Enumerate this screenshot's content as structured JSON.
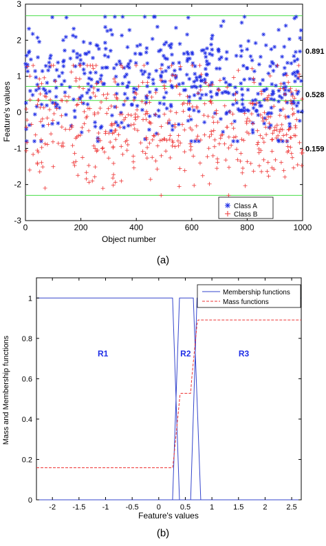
{
  "chart_data": [
    {
      "type": "scatter",
      "panel_label": "(a)",
      "xlabel": "Object number",
      "ylabel": "Feature's values",
      "xlim": [
        0,
        1000
      ],
      "ylim": [
        -3,
        3
      ],
      "xticks": [
        0,
        200,
        400,
        600,
        800,
        1000
      ],
      "xtick_labels": [
        "0",
        "200",
        "400",
        "600",
        "800",
        "1000"
      ],
      "yticks": [
        -3,
        -2,
        -1,
        0,
        1,
        2,
        3
      ],
      "ytick_labels": [
        "-3",
        "-2",
        "-1",
        "0",
        "1",
        "2",
        "3"
      ],
      "legend_position": "bottom-right",
      "series": [
        {
          "name": "Class A",
          "marker": "*",
          "color": "#1f2ee6",
          "n_points": 500,
          "y_range": [
            -0.8,
            2.65
          ],
          "y_center": 0.9
        },
        {
          "name": "Class B",
          "marker": "+",
          "color": "#ee3333",
          "n_points": 500,
          "y_range": [
            -2.3,
            1.3
          ],
          "y_center": -0.3
        }
      ],
      "reference_lines": {
        "color": "#44dd44",
        "y": [
          2.68,
          0.72,
          0.33,
          -2.3
        ]
      },
      "annotations": [
        {
          "text": "0.891",
          "y": 1.7
        },
        {
          "text": "0.528",
          "y": 0.5
        },
        {
          "text": "0.159",
          "y": -1.0
        }
      ]
    },
    {
      "type": "line",
      "panel_label": "(b)",
      "xlabel": "Feature's values",
      "ylabel": "Mass and Membership functions",
      "xlim": [
        -2.3,
        2.68
      ],
      "ylim": [
        0,
        1.1
      ],
      "xticks": [
        -2,
        -1.5,
        -1,
        -0.5,
        0,
        0.5,
        1,
        1.5,
        2,
        2.5
      ],
      "xtick_labels": [
        "-2",
        "-1.5",
        "-1",
        "-0.5",
        "0",
        "0.5",
        "1",
        "1.5",
        "2",
        "2.5"
      ],
      "yticks": [
        0,
        0.2,
        0.4,
        0.6,
        0.8,
        1
      ],
      "ytick_labels": [
        "0",
        "0.2",
        "0.4",
        "0.6",
        "0.8",
        "1"
      ],
      "legend_position": "top-right",
      "series": [
        {
          "name": "Membership functions",
          "style": "solid",
          "color": "#3344cc",
          "segments": [
            {
              "x": [
                -2.3,
                0.26,
                0.39,
                2.68
              ],
              "y": [
                1,
                1,
                0,
                0
              ]
            },
            {
              "x": [
                -2.3,
                0.26,
                0.39,
                0.46,
                0.6,
                0.65,
                0.79,
                2.68
              ],
              "y": [
                0,
                0,
                1,
                1,
                1,
                1,
                0,
                0
              ]
            },
            {
              "x": [
                -2.3,
                0.6,
                0.72,
                2.68
              ],
              "y": [
                0,
                0,
                1,
                1
              ]
            }
          ]
        },
        {
          "name": "Mass functions",
          "style": "dashed",
          "color": "#ee3333",
          "x": [
            -2.3,
            0.26,
            0.28,
            0.4,
            0.42,
            0.6,
            0.62,
            0.72,
            0.74,
            2.68
          ],
          "y": [
            0.159,
            0.159,
            0.2,
            0.52,
            0.528,
            0.528,
            0.6,
            0.87,
            0.891,
            0.891
          ]
        }
      ],
      "region_labels": [
        {
          "text": "R1",
          "x": -1.05,
          "y": 0.71
        },
        {
          "text": "R2",
          "x": 0.505,
          "y": 0.71
        },
        {
          "text": "R3",
          "x": 1.6,
          "y": 0.71
        }
      ]
    }
  ]
}
